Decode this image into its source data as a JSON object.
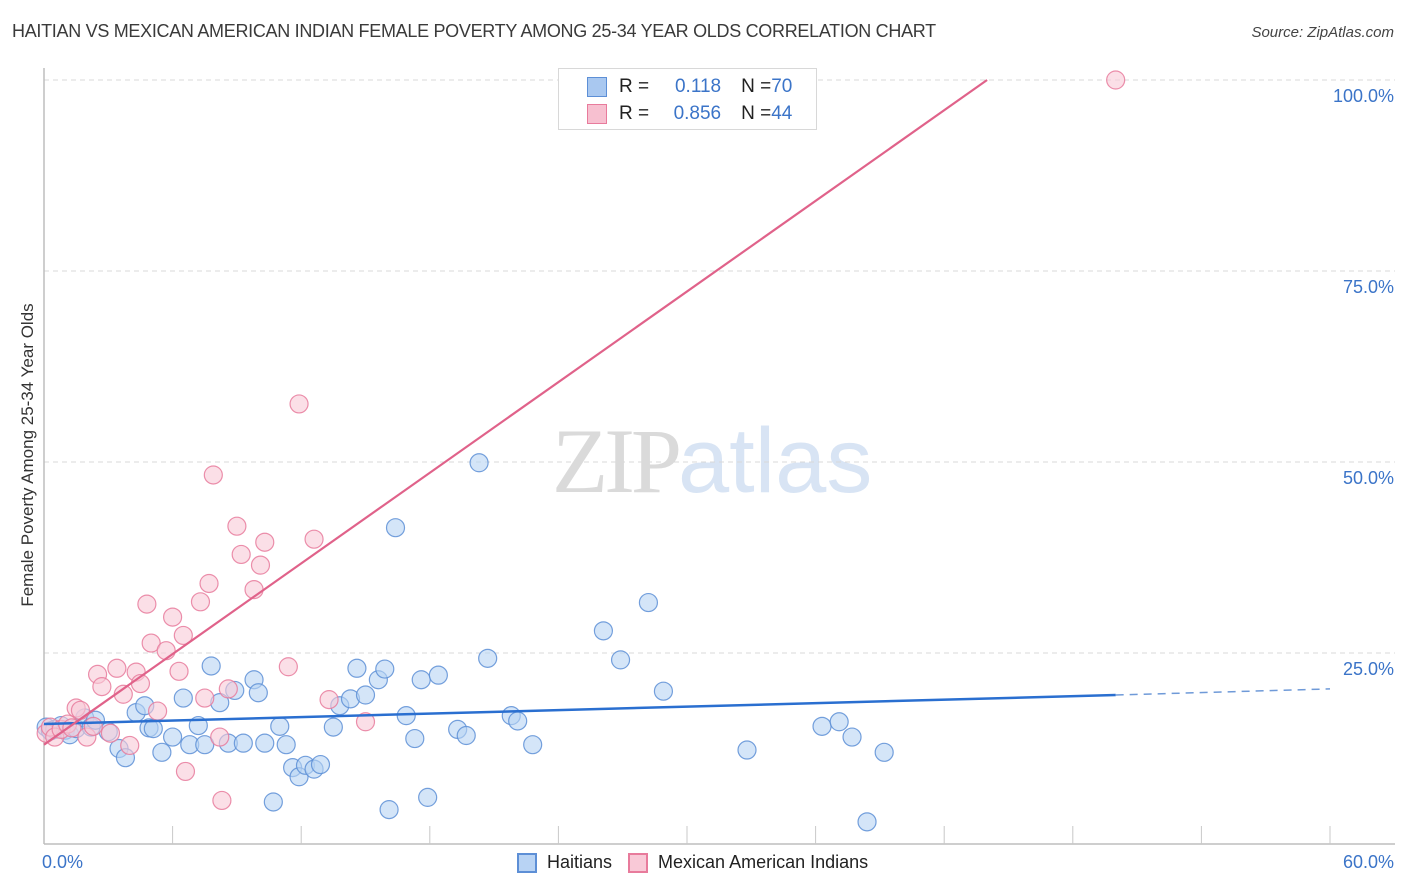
{
  "header": {
    "title": "HAITIAN VS MEXICAN AMERICAN INDIAN FEMALE POVERTY AMONG 25-34 YEAR OLDS CORRELATION CHART",
    "source": "Source: ZipAtlas.com"
  },
  "watermark": {
    "zip": "ZIP",
    "atlas": "atlas"
  },
  "legend_box": {
    "rows": [
      {
        "r_label": "R = ",
        "r_value": "0.118",
        "n_label": "N = ",
        "n_value": "70",
        "color": "#a9c8f0",
        "border": "#5d8fd6"
      },
      {
        "r_label": "R = ",
        "r_value": "0.856",
        "n_label": "N = ",
        "n_value": "44",
        "color": "#f7c0d0",
        "border": "#e87b9c"
      }
    ]
  },
  "bottom_legend": [
    {
      "label": "Haitians",
      "color": "#b8d3f4",
      "border": "#5d8fd6"
    },
    {
      "label": "Mexican American Indians",
      "color": "#f9c9d7",
      "border": "#e87b9c"
    }
  ],
  "axes": {
    "y_label": "Female Poverty Among 25-34 Year Olds",
    "y_ticks": [
      "100.0%",
      "75.0%",
      "50.0%",
      "25.0%"
    ],
    "x_ticks": [
      "0.0%",
      "60.0%"
    ]
  },
  "chart_data": {
    "type": "scatter",
    "title": "HAITIAN VS MEXICAN AMERICAN INDIAN FEMALE POVERTY AMONG 25-34 YEAR OLDS CORRELATION CHART",
    "xlabel": "",
    "ylabel": "Female Poverty Among 25-34 Year Olds",
    "xlim": [
      0,
      60
    ],
    "ylim": [
      0,
      100
    ],
    "x_tick_labels": [
      "0.0%",
      "60.0%"
    ],
    "y_tick_labels": [
      "25.0%",
      "50.0%",
      "75.0%",
      "100.0%"
    ],
    "grid": "horizontal dashed at 25, 50, 75, 100",
    "legend_position": "top-center (stats) and bottom-center (series)",
    "series": [
      {
        "name": "Haitians",
        "color": "#5d8fd6",
        "fill": "#b8d3f4",
        "R": 0.118,
        "N": 70,
        "trend": {
          "x0": 0,
          "y0": 15.7,
          "x1": 50,
          "y1": 19.5,
          "extended_to_x": 60,
          "extended_y": 20.3
        },
        "points": [
          [
            0.1,
            15.3
          ],
          [
            0.3,
            14.8
          ],
          [
            0.5,
            15.0
          ],
          [
            0.8,
            15.5
          ],
          [
            1.0,
            14.9
          ],
          [
            1.2,
            14.3
          ],
          [
            1.5,
            15.1
          ],
          [
            1.9,
            16.5
          ],
          [
            2.2,
            15.3
          ],
          [
            2.4,
            16.2
          ],
          [
            3.0,
            14.7
          ],
          [
            3.5,
            12.5
          ],
          [
            3.8,
            11.3
          ],
          [
            4.3,
            17.2
          ],
          [
            4.7,
            18.1
          ],
          [
            4.9,
            15.2
          ],
          [
            5.1,
            15.1
          ],
          [
            5.5,
            12.0
          ],
          [
            6.0,
            14.0
          ],
          [
            6.5,
            19.1
          ],
          [
            6.8,
            13.0
          ],
          [
            7.2,
            15.5
          ],
          [
            7.5,
            13.0
          ],
          [
            7.8,
            23.3
          ],
          [
            8.2,
            18.5
          ],
          [
            8.6,
            13.2
          ],
          [
            8.9,
            20.1
          ],
          [
            9.3,
            13.2
          ],
          [
            9.8,
            21.5
          ],
          [
            10.0,
            19.8
          ],
          [
            10.3,
            13.2
          ],
          [
            10.7,
            5.5
          ],
          [
            11.0,
            15.4
          ],
          [
            11.3,
            13.0
          ],
          [
            11.6,
            10.0
          ],
          [
            11.9,
            8.8
          ],
          [
            12.2,
            10.3
          ],
          [
            12.6,
            9.8
          ],
          [
            12.9,
            10.4
          ],
          [
            13.5,
            15.3
          ],
          [
            13.8,
            18.1
          ],
          [
            14.3,
            19.0
          ],
          [
            14.6,
            23.0
          ],
          [
            15.0,
            19.5
          ],
          [
            15.6,
            21.5
          ],
          [
            15.9,
            22.9
          ],
          [
            16.1,
            4.5
          ],
          [
            16.4,
            41.4
          ],
          [
            16.9,
            16.8
          ],
          [
            17.3,
            13.8
          ],
          [
            17.6,
            21.5
          ],
          [
            17.9,
            6.1
          ],
          [
            18.4,
            22.1
          ],
          [
            19.3,
            15.0
          ],
          [
            19.7,
            14.2
          ],
          [
            20.3,
            49.9
          ],
          [
            20.7,
            24.3
          ],
          [
            21.8,
            16.8
          ],
          [
            22.1,
            16.1
          ],
          [
            22.8,
            13.0
          ],
          [
            26.1,
            27.9
          ],
          [
            26.9,
            24.1
          ],
          [
            28.2,
            31.6
          ],
          [
            28.9,
            20.0
          ],
          [
            32.8,
            12.3
          ],
          [
            36.3,
            15.4
          ],
          [
            37.1,
            16.0
          ],
          [
            37.7,
            14.0
          ],
          [
            38.4,
            2.9
          ],
          [
            39.2,
            12.0
          ]
        ]
      },
      {
        "name": "Mexican American Indians",
        "color": "#e87b9c",
        "fill": "#f9c9d7",
        "R": 0.856,
        "N": 44,
        "trend": {
          "x0": 0,
          "y0": 13.0,
          "x1": 44,
          "y1": 100
        },
        "points": [
          [
            0.1,
            14.5
          ],
          [
            0.3,
            15.3
          ],
          [
            0.5,
            14.0
          ],
          [
            0.8,
            15.0
          ],
          [
            1.1,
            15.7
          ],
          [
            1.3,
            15.2
          ],
          [
            1.5,
            17.8
          ],
          [
            1.7,
            17.5
          ],
          [
            2.0,
            14.0
          ],
          [
            2.3,
            15.4
          ],
          [
            2.5,
            22.2
          ],
          [
            2.7,
            20.6
          ],
          [
            3.1,
            14.5
          ],
          [
            3.4,
            23.0
          ],
          [
            3.7,
            19.6
          ],
          [
            4.0,
            12.9
          ],
          [
            4.3,
            22.5
          ],
          [
            4.5,
            21.0
          ],
          [
            4.8,
            31.4
          ],
          [
            5.0,
            26.3
          ],
          [
            5.3,
            17.4
          ],
          [
            5.7,
            25.3
          ],
          [
            6.0,
            29.7
          ],
          [
            6.3,
            22.6
          ],
          [
            6.5,
            27.3
          ],
          [
            6.6,
            9.5
          ],
          [
            7.3,
            31.7
          ],
          [
            7.5,
            19.1
          ],
          [
            7.7,
            34.1
          ],
          [
            7.9,
            48.3
          ],
          [
            8.2,
            14.0
          ],
          [
            8.3,
            5.7
          ],
          [
            8.6,
            20.3
          ],
          [
            9.0,
            41.6
          ],
          [
            9.2,
            37.9
          ],
          [
            9.8,
            33.3
          ],
          [
            10.1,
            36.5
          ],
          [
            10.3,
            39.5
          ],
          [
            11.4,
            23.2
          ],
          [
            11.9,
            57.6
          ],
          [
            12.6,
            39.9
          ],
          [
            13.3,
            18.9
          ],
          [
            15.0,
            16.0
          ],
          [
            50.0,
            100.0
          ]
        ]
      }
    ]
  }
}
